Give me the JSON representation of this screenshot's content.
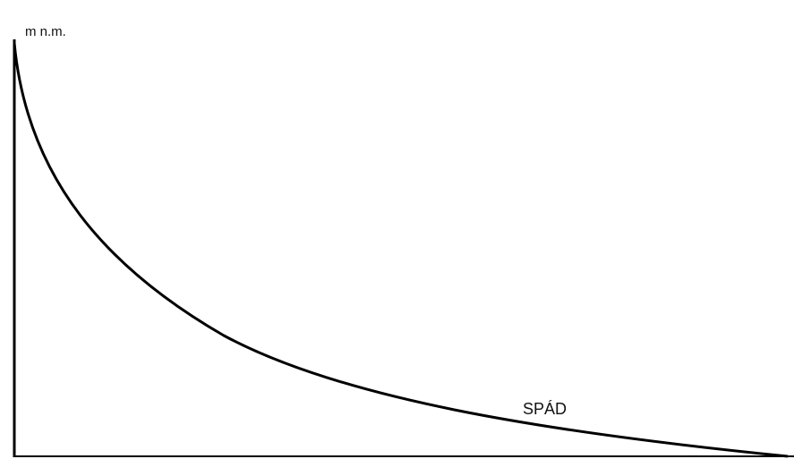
{
  "axis_label": "m n.m.",
  "curve_label": "SPÁD"
}
